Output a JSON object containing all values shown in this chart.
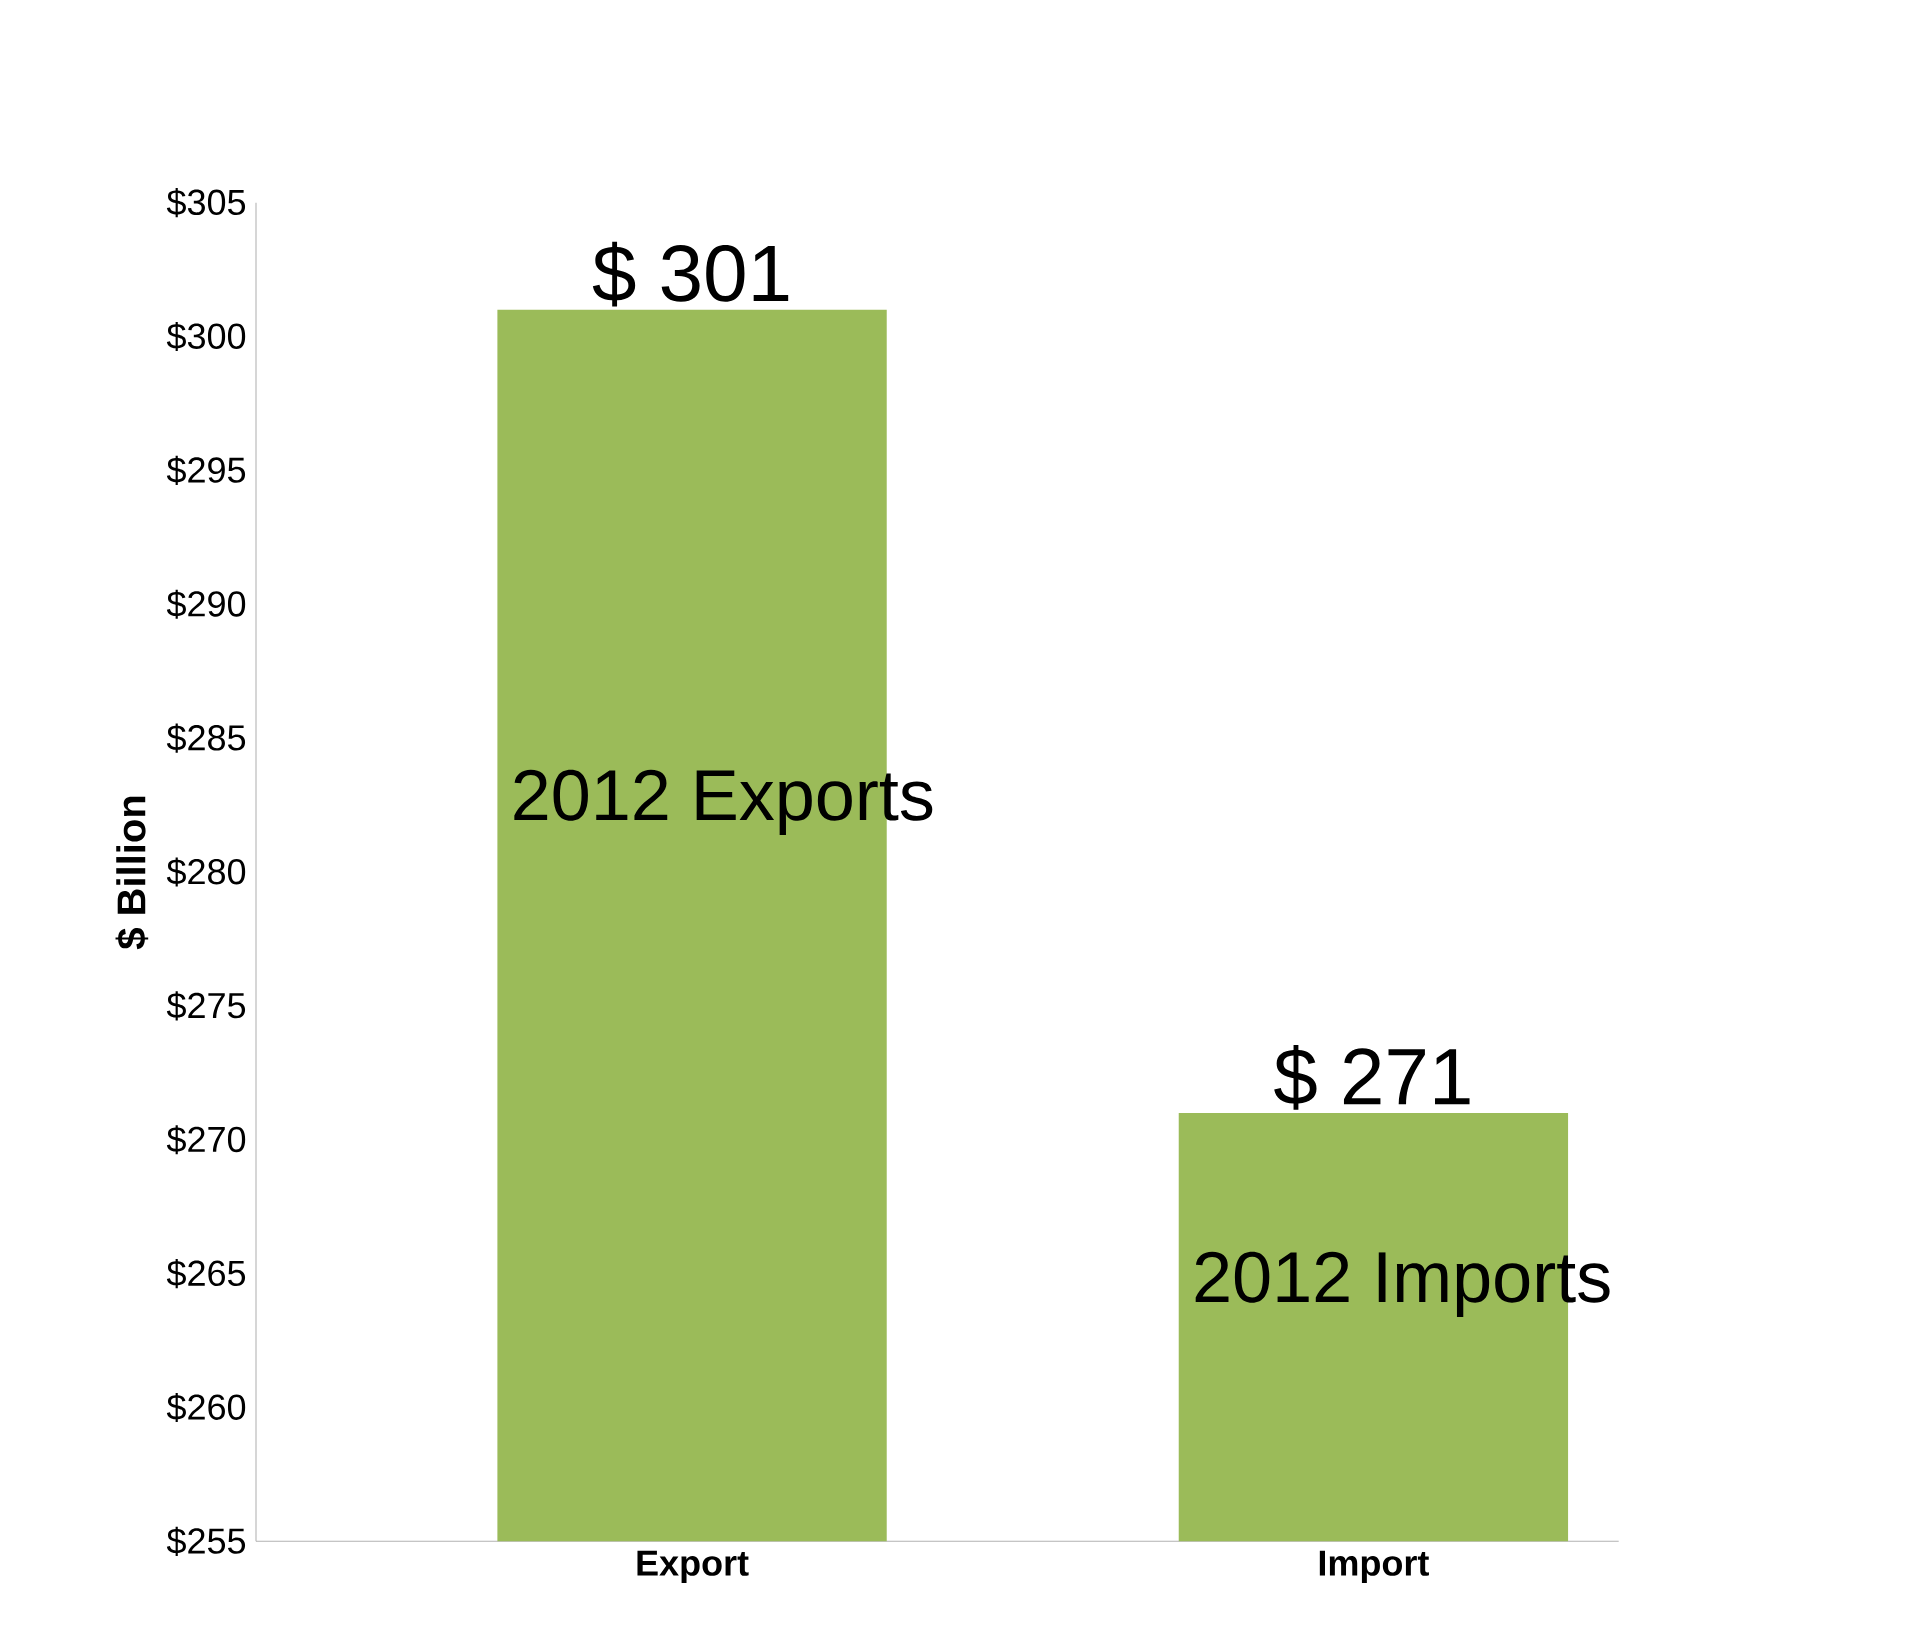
{
  "chart_data": {
    "type": "bar",
    "ylabel": "$ Billion",
    "categories": [
      "Export",
      "Import"
    ],
    "values": [
      301,
      271
    ],
    "value_labels": [
      "$ 301",
      "$ 271"
    ],
    "color": "#9bbb59",
    "ylim": [
      255,
      305
    ],
    "yticks": [
      {
        "value": 255,
        "label": "$255"
      },
      {
        "value": 260,
        "label": "$260"
      },
      {
        "value": 265,
        "label": "$265"
      },
      {
        "value": 270,
        "label": "$270"
      },
      {
        "value": 275,
        "label": "$275"
      },
      {
        "value": 280,
        "label": "$280"
      },
      {
        "value": 285,
        "label": "$285"
      },
      {
        "value": 290,
        "label": "$290"
      },
      {
        "value": 295,
        "label": "$295"
      },
      {
        "value": 300,
        "label": "$300"
      },
      {
        "value": 305,
        "label": "$305"
      }
    ],
    "annotations": [
      "2012 Exports",
      "2012 Imports"
    ]
  }
}
